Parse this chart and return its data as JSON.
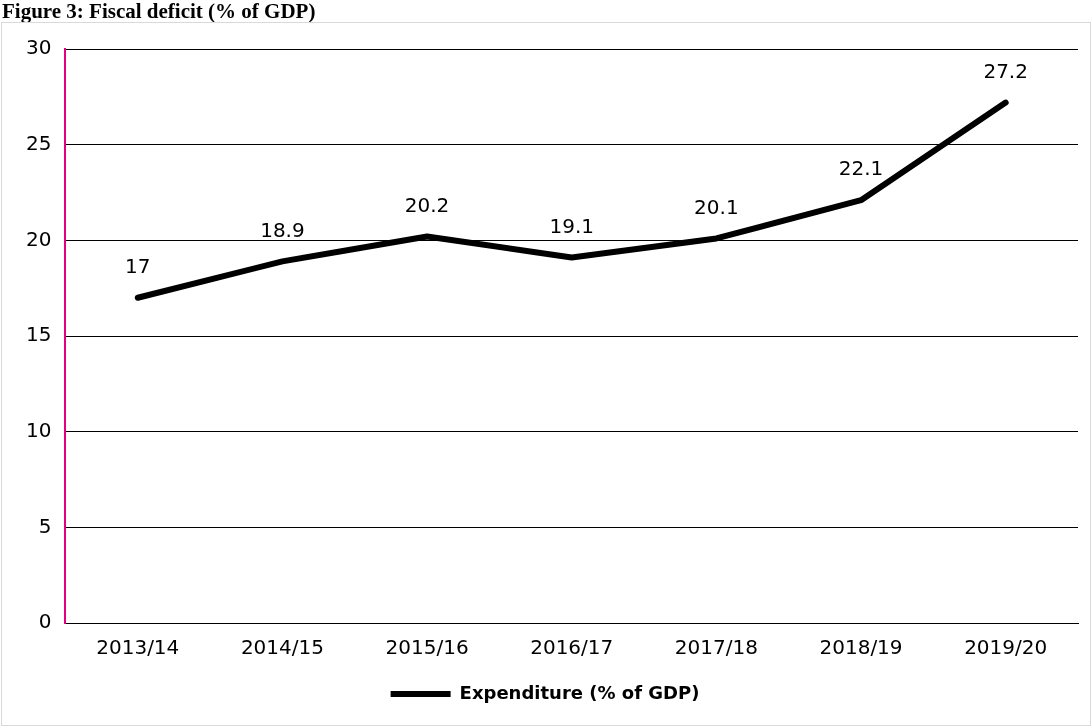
{
  "chart_data": {
    "type": "line",
    "title": "Figure 3: Fiscal deficit (% of GDP)",
    "categories": [
      "2013/14",
      "2014/15",
      "2015/16",
      "2016/17",
      "2017/18",
      "2018/19",
      "2019/20"
    ],
    "series": [
      {
        "name": "Expenditure (% of GDP)",
        "color": "#000000",
        "values": [
          17,
          18.9,
          20.2,
          19.1,
          20.1,
          22.1,
          27.2
        ]
      }
    ],
    "ylim": [
      0,
      30
    ],
    "yticks": [
      0,
      5,
      10,
      15,
      20,
      25,
      30
    ],
    "grid": "y",
    "legend": "bottom",
    "data_labels": true,
    "marker": "none",
    "line_style": "solid"
  }
}
